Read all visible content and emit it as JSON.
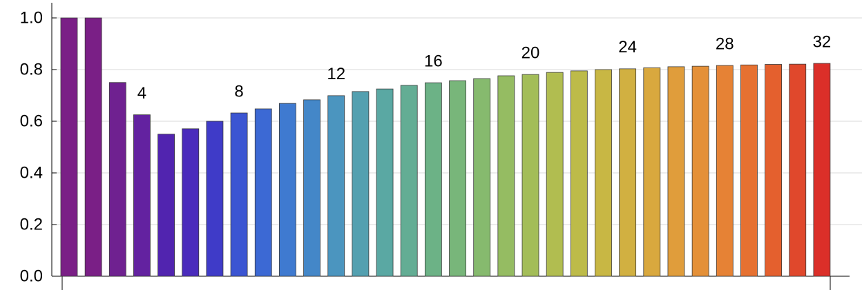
{
  "chart_data": {
    "type": "bar",
    "categories": [
      null,
      null,
      null,
      "4",
      null,
      null,
      null,
      "8",
      null,
      null,
      null,
      "12",
      null,
      null,
      null,
      "16",
      null,
      null,
      null,
      "20",
      null,
      null,
      null,
      "24",
      null,
      null,
      null,
      "28",
      null,
      null,
      null,
      "32"
    ],
    "values": [
      1.0,
      1.0,
      0.75,
      0.625,
      0.55,
      0.571,
      0.6,
      0.632,
      0.648,
      0.669,
      0.683,
      0.699,
      0.715,
      0.725,
      0.739,
      0.749,
      0.757,
      0.765,
      0.776,
      0.781,
      0.789,
      0.795,
      0.8,
      0.803,
      0.807,
      0.811,
      0.813,
      0.816,
      0.818,
      0.82,
      0.821,
      0.824
    ],
    "colors": [
      "#7a1f86",
      "#7a1f86",
      "#6f2190",
      "#6322a0",
      "#5124af",
      "#4a2bbc",
      "#3f3bc8",
      "#3b55d2",
      "#3c69d4",
      "#3f7ad0",
      "#4487c8",
      "#4b95bf",
      "#53a0b0",
      "#5aa8a3",
      "#63ad94",
      "#6cb286",
      "#78b67a",
      "#86ba6e",
      "#95bc62",
      "#a3bd58",
      "#b1bd50",
      "#bdbb49",
      "#c8b744",
      "#d1b041",
      "#d9a83e",
      "#e09d3b",
      "#e49038",
      "#e68235",
      "#e67131",
      "#e4602e",
      "#e0482c",
      "#db2f29"
    ],
    "ylim": [
      0,
      1.05
    ],
    "yticks": [
      {
        "value": 0,
        "label": "0.0"
      },
      0.2,
      0.4,
      0.6,
      0.8,
      {
        "value": 1,
        "label": "1.0"
      }
    ],
    "grid": true
  }
}
